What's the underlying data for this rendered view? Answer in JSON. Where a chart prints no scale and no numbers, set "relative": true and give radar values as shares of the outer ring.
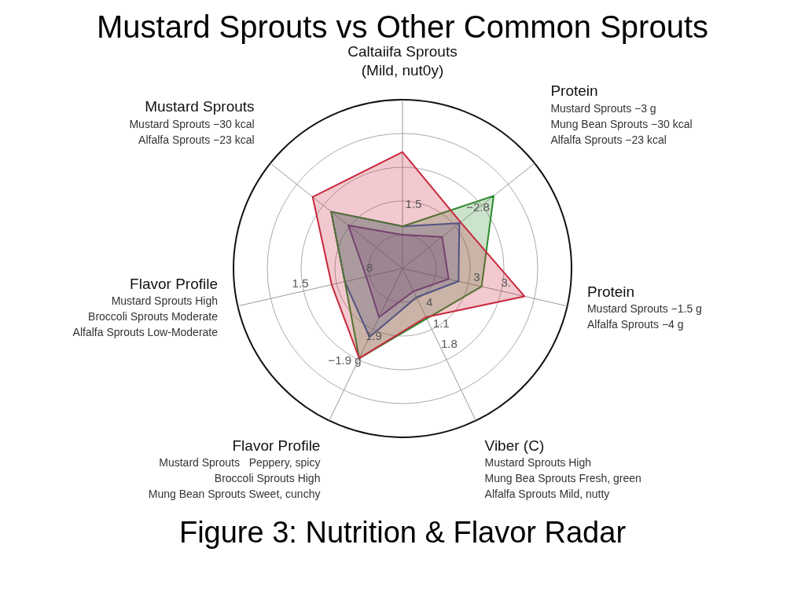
{
  "chart_data": {
    "type": "radar",
    "title": "Mustard Sprouts vs Other Common Sprouts",
    "subtitle": "Figure 3: Nutrition & Flavor Radar",
    "relative": true,
    "legend": false,
    "categories": [
      "Caltaiifa Sprouts\n(Mild, nut0y)",
      "Protein\nMustard Sprouts −3 g\nMung Bean Sprouts −30 kcal\nAlfalfa Sprouts −23 kcal",
      "Protein\nMustard Sprouts −1.5 g\nAlfalfa Sprouts −4 g",
      "Viber (C)\nMustard Sprouts High\nMung Bea Sprouts Fresh, green\nAlfalfa Sprouts Mild, nutty",
      "Flavor Profile\nMustard Sprouts   Peppery, spicy\nBroccoli Sprouts High\nMung Bean Sprouts Sweet, cunchy",
      "Flavor Profile\nMustard Sprouts High\nBroccoli Sprouts Moderate\nAlfalfa Sprouts Low-Moderate",
      "Mustard Sprouts\nMustard Sprouts −30 kcal\nAlfalfa Sprouts −23 kcal"
    ],
    "series": [
      {
        "color": "#c8283c",
        "values": [
          0.69,
          0.44,
          0.74,
          0.32,
          0.59,
          0.43,
          0.68
        ]
      },
      {
        "color": "#2e8b2e",
        "values": [
          0.25,
          0.69,
          0.48,
          0.33,
          0.59,
          0.35,
          0.54
        ]
      },
      {
        "color": "#2a52be",
        "values": [
          0.25,
          0.43,
          0.34,
          0.19,
          0.45,
          0.35,
          0.54
        ]
      },
      {
        "color": "#7a2a8f",
        "values": [
          0.2,
          0.3,
          0.28,
          0.15,
          0.32,
          0.22,
          0.41
        ]
      }
    ],
    "annotations": [
      "1.5",
      "−2.8",
      "3",
      "3.",
      "4",
      "1.1",
      "1.8",
      "−1.9 g",
      "1.9",
      "8",
      "1.5"
    ]
  }
}
